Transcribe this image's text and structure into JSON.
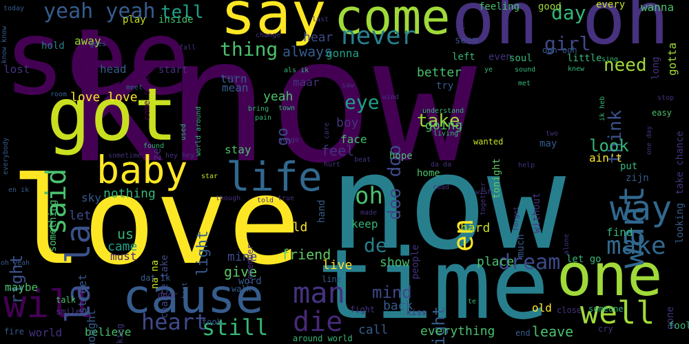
{
  "colors": {
    "background": "#000000",
    "palette": [
      "#440154",
      "#46327e",
      "#365c8d",
      "#277f8e",
      "#1fa187",
      "#4ac16d",
      "#a0da39",
      "#fde725"
    ]
  },
  "words": [
    {
      "text": "know",
      "color": "#440154"
    },
    {
      "text": "see",
      "color": "#440154"
    },
    {
      "text": "now",
      "color": "#277f8e"
    },
    {
      "text": "love",
      "color": "#fde725"
    },
    {
      "text": "time",
      "color": "#277f8e"
    },
    {
      "text": "got",
      "color": "#c8e020"
    },
    {
      "text": "oh oh",
      "color": "#46327e"
    },
    {
      "text": "say",
      "color": "#fde725"
    },
    {
      "text": "come",
      "color": "#a0da39"
    },
    {
      "text": "one",
      "color": "#a0da39"
    },
    {
      "text": "cause",
      "color": "#365c8d"
    },
    {
      "text": "baby",
      "color": "#fde725"
    },
    {
      "text": "life",
      "color": "#31688e"
    },
    {
      "text": "want",
      "color": "#31688e"
    },
    {
      "text": "will",
      "color": "#440154"
    },
    {
      "text": "well",
      "color": "#a0da39"
    },
    {
      "text": "way",
      "color": "#31688e"
    },
    {
      "text": "yeah yeah",
      "color": "#365c8d"
    },
    {
      "text": "never",
      "color": "#277f8e"
    },
    {
      "text": "man",
      "color": "#46327e"
    },
    {
      "text": "die",
      "color": "#482878"
    },
    {
      "text": "make",
      "color": "#31688e"
    },
    {
      "text": "la la",
      "color": "#3b528b"
    },
    {
      "text": "heart",
      "color": "#3e4a89"
    },
    {
      "text": "oh",
      "color": "#4ac16d"
    },
    {
      "text": "en",
      "color": "#fde725"
    },
    {
      "text": "said",
      "color": "#4ac16d"
    },
    {
      "text": "still",
      "color": "#35b779"
    },
    {
      "text": "dream",
      "color": "#3e4a89"
    },
    {
      "text": "tell",
      "color": "#1fa187"
    },
    {
      "text": "day",
      "color": "#35b779"
    },
    {
      "text": "thing",
      "color": "#4ac16d"
    },
    {
      "text": "girl",
      "color": "#3e4a89"
    },
    {
      "text": "need",
      "color": "#a0da39"
    },
    {
      "text": "think",
      "color": "#3b528b"
    },
    {
      "text": "eye",
      "color": "#1fa187"
    },
    {
      "text": "doo doo",
      "color": "#3e4a89"
    },
    {
      "text": "take",
      "color": "#a0da39"
    },
    {
      "text": "look",
      "color": "#35b779"
    },
    {
      "text": "go",
      "color": "#3e4a89"
    },
    {
      "text": "right",
      "color": "#3b528b"
    },
    {
      "text": "light",
      "color": "#365c8d"
    },
    {
      "text": "de",
      "color": "#277f8e"
    },
    {
      "text": "friend",
      "color": "#5ec962"
    },
    {
      "text": "mind",
      "color": "#3e4a89"
    },
    {
      "text": "night",
      "color": "#365c8d"
    },
    {
      "text": "always",
      "color": "#365c8d"
    },
    {
      "text": "love love",
      "color": "#fde725"
    },
    {
      "text": "yeah",
      "color": "#4ac16d"
    },
    {
      "text": "feel",
      "color": "#46327e"
    },
    {
      "text": "give",
      "color": "#5ec962"
    },
    {
      "text": "come come",
      "color": "#440154"
    },
    {
      "text": "hear",
      "color": "#3e4a89"
    },
    {
      "text": "better",
      "color": "#4ac16d"
    },
    {
      "text": "going",
      "color": "#4ac16d"
    },
    {
      "text": "boy",
      "color": "#46327e"
    },
    {
      "text": "keep",
      "color": "#35b779"
    },
    {
      "text": "nothing",
      "color": "#35b779"
    },
    {
      "text": "let",
      "color": "#3e4a89"
    },
    {
      "text": "us",
      "color": "#35b779"
    },
    {
      "text": "came",
      "color": "#1fa187"
    },
    {
      "text": "must",
      "color": "#482878"
    },
    {
      "text": "mine",
      "color": "#3e4a89"
    },
    {
      "text": "cold",
      "color": "#fde725"
    },
    {
      "text": "live",
      "color": "#fde725"
    },
    {
      "text": "show",
      "color": "#4ac16d"
    },
    {
      "text": "back",
      "color": "#365c8d"
    },
    {
      "text": "place",
      "color": "#4ac16d"
    },
    {
      "text": "hard",
      "color": "#c8e020"
    },
    {
      "text": "everything",
      "color": "#4ac16d"
    },
    {
      "text": "leave",
      "color": "#4ac16d"
    },
    {
      "text": "call",
      "color": "#365c8d"
    },
    {
      "text": "believe",
      "color": "#4ac16d"
    },
    {
      "text": "world",
      "color": "#46327e"
    },
    {
      "text": "maybe",
      "color": "#4ac16d"
    },
    {
      "text": "street",
      "color": "#365c8d"
    },
    {
      "text": "thought",
      "color": "#365c8d"
    },
    {
      "text": "head",
      "color": "#365c8d"
    },
    {
      "text": "start",
      "color": "#46327e"
    },
    {
      "text": "turn",
      "color": "#365c8d"
    },
    {
      "text": "mean",
      "color": "#365c8d"
    },
    {
      "text": "maar",
      "color": "#46327e"
    },
    {
      "text": "hold",
      "color": "#277f8e"
    },
    {
      "text": "lost",
      "color": "#46327e"
    },
    {
      "text": "play",
      "color": "#c8e020"
    },
    {
      "text": "inside",
      "color": "#4ac16d"
    },
    {
      "text": "away",
      "color": "#a0da39"
    },
    {
      "text": "gonna",
      "color": "#1fa187"
    },
    {
      "text": "feeling",
      "color": "#4ac16d"
    },
    {
      "text": "good",
      "color": "#a0da39"
    },
    {
      "text": "every",
      "color": "#c8e020"
    },
    {
      "text": "wanna",
      "color": "#4ac16d"
    },
    {
      "text": "gotta",
      "color": "#a0da39"
    },
    {
      "text": "seem",
      "color": "#3e4a89"
    },
    {
      "text": "left",
      "color": "#35b779"
    },
    {
      "text": "even",
      "color": "#46327e"
    },
    {
      "text": "soul",
      "color": "#35b779"
    },
    {
      "text": "little",
      "color": "#35b779"
    },
    {
      "text": "ooh ooh",
      "color": "#365c8d"
    },
    {
      "text": "long",
      "color": "#46327e"
    },
    {
      "text": "try",
      "color": "#365c8d"
    },
    {
      "text": "face",
      "color": "#4ac16d"
    },
    {
      "text": "something",
      "color": "#4ac16d"
    },
    {
      "text": "stay",
      "color": "#4ac16d"
    },
    {
      "text": "hope",
      "color": "#4ac16d"
    },
    {
      "text": "home",
      "color": "#4ac16d"
    },
    {
      "text": "tonight",
      "color": "#5ec962"
    },
    {
      "text": "may",
      "color": "#365c8d"
    },
    {
      "text": "ain't",
      "color": "#fde725"
    },
    {
      "text": "put",
      "color": "#35b779"
    },
    {
      "text": "without",
      "color": "#46327e"
    },
    {
      "text": "much",
      "color": "#365c8d"
    },
    {
      "text": "looking",
      "color": "#365c8d"
    },
    {
      "text": "find",
      "color": "#35b779"
    },
    {
      "text": "take chance",
      "color": "#46327e"
    },
    {
      "text": "hand",
      "color": "#365c8d"
    },
    {
      "text": "people",
      "color": "#46327e"
    },
    {
      "text": "chance take",
      "color": "#3e4a89"
    },
    {
      "text": "na na",
      "color": "#c8e020"
    },
    {
      "text": "sky",
      "color": "#365c8d"
    },
    {
      "text": "ze",
      "color": "#46327e"
    },
    {
      "text": "remember",
      "color": "#46327e"
    },
    {
      "text": "let go",
      "color": "#35b779"
    },
    {
      "text": "old",
      "color": "#fde725"
    },
    {
      "text": "word",
      "color": "#365c8d"
    },
    {
      "text": "walk",
      "color": "#365c8d"
    },
    {
      "text": "fire",
      "color": "#365c8d"
    },
    {
      "text": "talk",
      "color": "#4ac16d"
    },
    {
      "text": "smile",
      "color": "#46327e"
    },
    {
      "text": "door",
      "color": "#46327e"
    },
    {
      "text": "took",
      "color": "#365c8d"
    },
    {
      "text": "walking",
      "color": "#46327e"
    },
    {
      "text": "fight",
      "color": "#46327e"
    },
    {
      "text": "kiss",
      "color": "#46327e"
    },
    {
      "text": "close",
      "color": "#46327e"
    },
    {
      "text": "someone",
      "color": "#35b779"
    },
    {
      "text": "gone",
      "color": "#46327e"
    },
    {
      "text": "end",
      "color": "#365c8d"
    },
    {
      "text": "fool",
      "color": "#35b779"
    },
    {
      "text": "cry",
      "color": "#46327e"
    },
    {
      "text": "around world",
      "color": "#35b779"
    },
    {
      "text": "line",
      "color": "#365c8d"
    },
    {
      "text": "dat ik",
      "color": "#365c8d"
    },
    {
      "text": "best",
      "color": "#365c8d"
    },
    {
      "text": "oh yeah",
      "color": "#365c8d"
    },
    {
      "text": "everybody",
      "color": "#365c8d"
    },
    {
      "text": "en ik",
      "color": "#365c8d"
    },
    {
      "text": "know know",
      "color": "#365c8d"
    },
    {
      "text": "today",
      "color": "#365c8d"
    },
    {
      "text": "goes",
      "color": "#365c8d"
    },
    {
      "text": "room",
      "color": "#365c8d"
    },
    {
      "text": "meet",
      "color": "#365c8d"
    },
    {
      "text": "sometime",
      "color": "#46327e"
    },
    {
      "text": "hey hey",
      "color": "#46327e"
    },
    {
      "text": "found",
      "color": "#35b779"
    },
    {
      "text": "used",
      "color": "#35b779"
    },
    {
      "text": "world around",
      "color": "#35b779"
    },
    {
      "text": "bring",
      "color": "#35b779"
    },
    {
      "text": "town",
      "color": "#35b779"
    },
    {
      "text": "pain",
      "color": "#35b779"
    },
    {
      "text": "go go",
      "color": "#46327e"
    },
    {
      "text": "care",
      "color": "#46327e"
    },
    {
      "text": "living",
      "color": "#35b779"
    },
    {
      "text": "understand",
      "color": "#35b779"
    },
    {
      "text": "beat",
      "color": "#46327e"
    },
    {
      "text": "hurt",
      "color": "#46327e"
    },
    {
      "text": "star",
      "color": "#c8e020"
    },
    {
      "text": "though",
      "color": "#46327e"
    },
    {
      "text": "told",
      "color": "#46327e"
    },
    {
      "text": "true",
      "color": "#46327e"
    },
    {
      "text": "made",
      "color": "#46327e"
    },
    {
      "text": "road",
      "color": "#46327e"
    },
    {
      "text": "da da",
      "color": "#46327e"
    },
    {
      "text": "help",
      "color": "#46327e"
    },
    {
      "text": "wanted",
      "color": "#c8e020"
    },
    {
      "text": "together",
      "color": "#46327e"
    },
    {
      "text": "wish",
      "color": "#46327e"
    },
    {
      "text": "forget",
      "color": "#46327e"
    },
    {
      "text": "alone",
      "color": "#46327e"
    },
    {
      "text": "zijn",
      "color": "#365c8d"
    },
    {
      "text": "one day",
      "color": "#46327e"
    },
    {
      "text": "easy",
      "color": "#4ac16d"
    },
    {
      "text": "stop",
      "color": "#46327e"
    },
    {
      "text": "ik heb",
      "color": "#35b779"
    },
    {
      "text": "met",
      "color": "#35b779"
    },
    {
      "text": "knew",
      "color": "#35b779"
    },
    {
      "text": "sound",
      "color": "#35b779"
    },
    {
      "text": "ye",
      "color": "#35b779"
    },
    {
      "text": "sing",
      "color": "#35b779"
    },
    {
      "text": "rain",
      "color": "#46327e"
    },
    {
      "text": "last",
      "color": "#46327e"
    },
    {
      "text": "change",
      "color": "#46327e"
    },
    {
      "text": "als ik",
      "color": "#35b779"
    },
    {
      "text": "tear",
      "color": "#46327e"
    },
    {
      "text": "saw",
      "color": "#46327e"
    },
    {
      "text": "wind",
      "color": "#46327e"
    },
    {
      "text": "fall",
      "color": "#46327e"
    },
    {
      "text": "two",
      "color": "#46327e"
    },
    {
      "text": "te",
      "color": "#35b779"
    }
  ]
}
